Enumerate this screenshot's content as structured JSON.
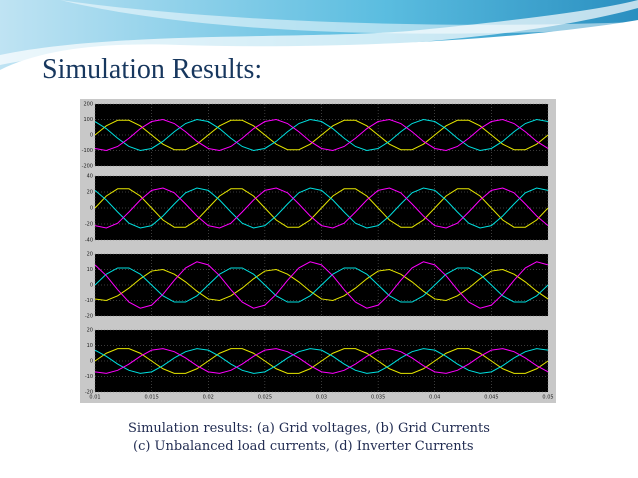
{
  "slide_title": "Simulation Results:",
  "caption": [
    "Simulation results: (a) Grid voltages, (b) Grid Currents",
    "(c) Unbalanced load currents, (d) Inverter Currents"
  ],
  "chart_data": [
    {
      "type": "line",
      "xlim": [
        0.01,
        0.05
      ],
      "ylim": [
        -200,
        200
      ],
      "yticks": [
        -200,
        -100,
        0,
        100,
        200
      ],
      "grid": true,
      "x": [
        0.01,
        0.011,
        0.012,
        0.013,
        0.014,
        0.015,
        0.016,
        0.017,
        0.018,
        0.019,
        0.02,
        0.021,
        0.022,
        0.023,
        0.024,
        0.025,
        0.026,
        0.027,
        0.028,
        0.029,
        0.03,
        0.031,
        0.032,
        0.033,
        0.034,
        0.035,
        0.036,
        0.037,
        0.038,
        0.039,
        0.04,
        0.041,
        0.042,
        0.043,
        0.044,
        0.045,
        0.046,
        0.047,
        0.048,
        0.049,
        0.05
      ],
      "series": [
        {
          "color": "#e6e600",
          "values": [
            0,
            59,
            95,
            95,
            59,
            0,
            -59,
            -95,
            -95,
            -59,
            0,
            59,
            95,
            95,
            59,
            0,
            -59,
            -95,
            -95,
            -59,
            0,
            59,
            95,
            95,
            59,
            0,
            -59,
            -95,
            -95,
            -59,
            0,
            59,
            95,
            95,
            59,
            0,
            -59,
            -95,
            -95,
            -59,
            0
          ]
        },
        {
          "color": "#00e0e0",
          "values": [
            87,
            41,
            -21,
            -74,
            -100,
            -87,
            -41,
            21,
            74,
            100,
            87,
            41,
            -21,
            -74,
            -100,
            -87,
            -41,
            21,
            74,
            100,
            87,
            41,
            -21,
            -74,
            -100,
            -87,
            -41,
            21,
            74,
            100,
            87,
            41,
            -21,
            -74,
            -100,
            -87,
            -41,
            21,
            74,
            100,
            87
          ]
        },
        {
          "color": "#ff00ff",
          "values": [
            -87,
            -100,
            -74,
            -21,
            41,
            87,
            100,
            74,
            21,
            -41,
            -87,
            -100,
            -74,
            -21,
            41,
            87,
            100,
            74,
            21,
            -41,
            -87,
            -100,
            -74,
            -21,
            41,
            87,
            100,
            74,
            21,
            -41,
            -87,
            -100,
            -74,
            -21,
            41,
            87,
            100,
            74,
            21,
            -41,
            -87
          ]
        }
      ]
    },
    {
      "type": "line",
      "xlim": [
        0.01,
        0.05
      ],
      "ylim": [
        -40,
        40
      ],
      "yticks": [
        -40,
        -20,
        0,
        20,
        40
      ],
      "grid": true,
      "x": [
        0.01,
        0.011,
        0.012,
        0.013,
        0.014,
        0.015,
        0.016,
        0.017,
        0.018,
        0.019,
        0.02,
        0.021,
        0.022,
        0.023,
        0.024,
        0.025,
        0.026,
        0.027,
        0.028,
        0.029,
        0.03,
        0.031,
        0.032,
        0.033,
        0.034,
        0.035,
        0.036,
        0.037,
        0.038,
        0.039,
        0.04,
        0.041,
        0.042,
        0.043,
        0.044,
        0.045,
        0.046,
        0.047,
        0.048,
        0.049,
        0.05
      ],
      "series": [
        {
          "color": "#e6e600",
          "values": [
            0,
            15,
            24,
            24,
            15,
            0,
            -15,
            -24,
            -24,
            -15,
            0,
            15,
            24,
            24,
            15,
            0,
            -15,
            -24,
            -24,
            -15,
            0,
            15,
            24,
            24,
            15,
            0,
            -15,
            -24,
            -24,
            -15,
            0,
            15,
            24,
            24,
            15,
            0,
            -15,
            -24,
            -24,
            -15,
            0
          ]
        },
        {
          "color": "#00e0e0",
          "values": [
            22,
            10,
            -5,
            -19,
            -25,
            -22,
            -10,
            5,
            19,
            25,
            22,
            10,
            -5,
            -19,
            -25,
            -22,
            -10,
            5,
            19,
            25,
            22,
            10,
            -5,
            -19,
            -25,
            -22,
            -10,
            5,
            19,
            25,
            22,
            10,
            -5,
            -19,
            -25,
            -22,
            -10,
            5,
            19,
            25,
            22
          ]
        },
        {
          "color": "#ff00ff",
          "values": [
            -22,
            -25,
            -19,
            -5,
            10,
            22,
            25,
            19,
            5,
            -10,
            -22,
            -25,
            -19,
            -5,
            10,
            22,
            25,
            19,
            5,
            -10,
            -22,
            -25,
            -19,
            -5,
            10,
            22,
            25,
            19,
            5,
            -10,
            -22,
            -25,
            -19,
            -5,
            10,
            22,
            25,
            19,
            5,
            -10,
            -22
          ]
        }
      ]
    },
    {
      "type": "line",
      "xlim": [
        0.01,
        0.05
      ],
      "ylim": [
        -20,
        20
      ],
      "yticks": [
        -20,
        -10,
        0,
        10,
        20
      ],
      "grid": true,
      "x": [
        0.01,
        0.011,
        0.012,
        0.013,
        0.014,
        0.015,
        0.016,
        0.017,
        0.018,
        0.019,
        0.02,
        0.021,
        0.022,
        0.023,
        0.024,
        0.025,
        0.026,
        0.027,
        0.028,
        0.029,
        0.03,
        0.031,
        0.032,
        0.033,
        0.034,
        0.035,
        0.036,
        0.037,
        0.038,
        0.039,
        0.04,
        0.041,
        0.042,
        0.043,
        0.044,
        0.045,
        0.046,
        0.047,
        0.048,
        0.049,
        0.05
      ],
      "series": [
        {
          "color": "#e6e600",
          "values": [
            -9,
            -10,
            -7,
            -2,
            4,
            9,
            10,
            7,
            2,
            -4,
            -9,
            -10,
            -7,
            -2,
            4,
            9,
            10,
            7,
            2,
            -4,
            -9,
            -10,
            -7,
            -2,
            4,
            9,
            10,
            7,
            2,
            -4,
            -9,
            -10,
            -7,
            -2,
            4,
            9,
            10,
            7,
            2,
            -4,
            -9
          ]
        },
        {
          "color": "#00e0e0",
          "values": [
            0,
            7,
            11,
            11,
            7,
            0,
            -7,
            -11,
            -11,
            -7,
            0,
            7,
            11,
            11,
            7,
            0,
            -7,
            -11,
            -11,
            -7,
            0,
            7,
            11,
            11,
            7,
            0,
            -7,
            -11,
            -11,
            -7,
            0,
            7,
            11,
            11,
            7,
            0,
            -7,
            -11,
            -11,
            -7,
            0
          ]
        },
        {
          "color": "#ff00ff",
          "values": [
            13,
            6,
            -3,
            -11,
            -15,
            -13,
            -6,
            3,
            11,
            15,
            13,
            6,
            -3,
            -11,
            -15,
            -13,
            -6,
            3,
            11,
            15,
            13,
            6,
            -3,
            -11,
            -15,
            -13,
            -6,
            3,
            11,
            15,
            13,
            6,
            -3,
            -11,
            -15,
            -13,
            -6,
            3,
            11,
            15,
            13
          ]
        }
      ]
    },
    {
      "type": "line",
      "xlim": [
        0.01,
        0.05
      ],
      "ylim": [
        -20,
        20
      ],
      "yticks": [
        -20,
        -10,
        0,
        10,
        20
      ],
      "grid": true,
      "xticks": [
        0.01,
        0.015,
        0.02,
        0.025,
        0.03,
        0.035,
        0.04,
        0.045,
        0.05
      ],
      "x": [
        0.01,
        0.011,
        0.012,
        0.013,
        0.014,
        0.015,
        0.016,
        0.017,
        0.018,
        0.019,
        0.02,
        0.021,
        0.022,
        0.023,
        0.024,
        0.025,
        0.026,
        0.027,
        0.028,
        0.029,
        0.03,
        0.031,
        0.032,
        0.033,
        0.034,
        0.035,
        0.036,
        0.037,
        0.038,
        0.039,
        0.04,
        0.041,
        0.042,
        0.043,
        0.044,
        0.045,
        0.046,
        0.047,
        0.048,
        0.049,
        0.05
      ],
      "series": [
        {
          "color": "#e6e600",
          "values": [
            0,
            5,
            8,
            8,
            5,
            0,
            -5,
            -8,
            -8,
            -5,
            0,
            5,
            8,
            8,
            5,
            0,
            -5,
            -8,
            -8,
            -5,
            0,
            5,
            8,
            8,
            5,
            0,
            -5,
            -8,
            -8,
            -5,
            0,
            5,
            8,
            8,
            5,
            0,
            -5,
            -8,
            -8,
            -5,
            0
          ]
        },
        {
          "color": "#00e0e0",
          "values": [
            7,
            3,
            -2,
            -6,
            -8,
            -7,
            -3,
            2,
            6,
            8,
            7,
            3,
            -2,
            -6,
            -8,
            -7,
            -3,
            2,
            6,
            8,
            7,
            3,
            -2,
            -6,
            -8,
            -7,
            -3,
            2,
            6,
            8,
            7,
            3,
            -2,
            -6,
            -8,
            -7,
            -3,
            2,
            6,
            8,
            7
          ]
        },
        {
          "color": "#ff00ff",
          "values": [
            -7,
            -8,
            -6,
            -2,
            3,
            7,
            8,
            6,
            2,
            -3,
            -7,
            -8,
            -6,
            -2,
            3,
            7,
            8,
            6,
            2,
            -3,
            -7,
            -8,
            -6,
            -2,
            3,
            7,
            8,
            6,
            2,
            -3,
            -7,
            -8,
            -6,
            -2,
            3,
            7,
            8,
            6,
            2,
            -3,
            -7
          ]
        }
      ]
    }
  ]
}
